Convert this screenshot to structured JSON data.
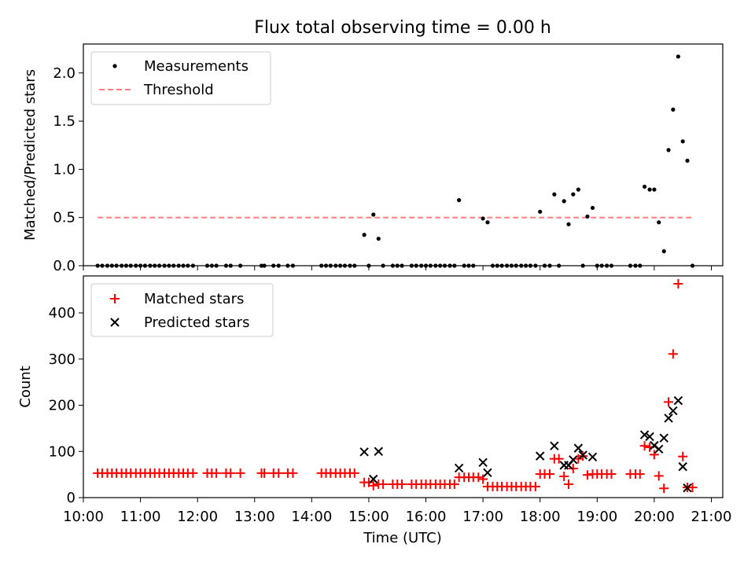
{
  "chart_data": [
    {
      "type": "scatter",
      "title": "Flux total observing time = 0.00 h",
      "xlabel": "",
      "ylabel": "Matched/Predicted stars",
      "xlim": [
        10.0,
        21.2
      ],
      "ylim": [
        0,
        2.3
      ],
      "yticks": [
        0,
        0.5,
        1,
        1.5,
        2
      ],
      "ytick_labels": [
        "0.0",
        "0.5",
        "1.0",
        "1.5",
        "2.0"
      ],
      "legend_position": "upper-left",
      "legend": [
        {
          "label": "Measurements",
          "marker": "dot",
          "color": "#000000"
        },
        {
          "label": "Threshold",
          "marker": "dashed-line",
          "color": "#ff7f7f"
        }
      ],
      "threshold": {
        "value": 0.5,
        "x_start": 10.25,
        "x_end": 20.67,
        "color": "#ff7f7f"
      },
      "points": [
        [
          10.25,
          0
        ],
        [
          10.33,
          0
        ],
        [
          10.42,
          0
        ],
        [
          10.5,
          0
        ],
        [
          10.58,
          0
        ],
        [
          10.67,
          0
        ],
        [
          10.75,
          0
        ],
        [
          10.83,
          0
        ],
        [
          10.92,
          0
        ],
        [
          11.0,
          0
        ],
        [
          11.08,
          0
        ],
        [
          11.17,
          0
        ],
        [
          11.25,
          0
        ],
        [
          11.33,
          0
        ],
        [
          11.42,
          0
        ],
        [
          11.5,
          0
        ],
        [
          11.58,
          0
        ],
        [
          11.67,
          0
        ],
        [
          11.75,
          0
        ],
        [
          11.83,
          0
        ],
        [
          11.92,
          0
        ],
        [
          12.17,
          0
        ],
        [
          12.25,
          0
        ],
        [
          12.33,
          0
        ],
        [
          12.5,
          0
        ],
        [
          12.58,
          0
        ],
        [
          12.75,
          0
        ],
        [
          13.12,
          0
        ],
        [
          13.17,
          0
        ],
        [
          13.33,
          0
        ],
        [
          13.42,
          0
        ],
        [
          13.58,
          0
        ],
        [
          13.67,
          0
        ],
        [
          14.17,
          0
        ],
        [
          14.25,
          0
        ],
        [
          14.33,
          0
        ],
        [
          14.42,
          0
        ],
        [
          14.5,
          0
        ],
        [
          14.58,
          0
        ],
        [
          14.67,
          0
        ],
        [
          14.75,
          0
        ],
        [
          14.92,
          0.32
        ],
        [
          15.0,
          0
        ],
        [
          15.08,
          0.53
        ],
        [
          15.17,
          0.28
        ],
        [
          15.25,
          0
        ],
        [
          15.42,
          0
        ],
        [
          15.5,
          0
        ],
        [
          15.58,
          0
        ],
        [
          15.75,
          0
        ],
        [
          15.83,
          0
        ],
        [
          15.92,
          0
        ],
        [
          16.0,
          0
        ],
        [
          16.08,
          0
        ],
        [
          16.17,
          0
        ],
        [
          16.25,
          0
        ],
        [
          16.33,
          0
        ],
        [
          16.42,
          0
        ],
        [
          16.5,
          0
        ],
        [
          16.58,
          0.68
        ],
        [
          16.67,
          0
        ],
        [
          16.75,
          0
        ],
        [
          16.83,
          0
        ],
        [
          17.0,
          0.49
        ],
        [
          17.08,
          0.45
        ],
        [
          17.17,
          0
        ],
        [
          17.25,
          0
        ],
        [
          17.33,
          0
        ],
        [
          17.42,
          0
        ],
        [
          17.5,
          0
        ],
        [
          17.58,
          0
        ],
        [
          17.67,
          0
        ],
        [
          17.75,
          0
        ],
        [
          17.83,
          0
        ],
        [
          17.92,
          0
        ],
        [
          18.0,
          0.56
        ],
        [
          18.08,
          0
        ],
        [
          18.17,
          0
        ],
        [
          18.25,
          0.74
        ],
        [
          18.33,
          0
        ],
        [
          18.42,
          0.67
        ],
        [
          18.5,
          0.43
        ],
        [
          18.58,
          0.74
        ],
        [
          18.67,
          0.79
        ],
        [
          18.75,
          0
        ],
        [
          18.83,
          0.51
        ],
        [
          18.92,
          0.6
        ],
        [
          19.0,
          0
        ],
        [
          19.08,
          0
        ],
        [
          19.17,
          0
        ],
        [
          19.25,
          0
        ],
        [
          19.58,
          0
        ],
        [
          19.67,
          0
        ],
        [
          19.75,
          0
        ],
        [
          19.83,
          0.82
        ],
        [
          19.92,
          0.79
        ],
        [
          20.0,
          0.79
        ],
        [
          20.08,
          0.45
        ],
        [
          20.17,
          0.15
        ],
        [
          20.25,
          1.2
        ],
        [
          20.33,
          1.62
        ],
        [
          20.42,
          2.17
        ],
        [
          20.5,
          1.29
        ],
        [
          20.58,
          1.09
        ],
        [
          20.67,
          0
        ]
      ]
    },
    {
      "type": "scatter",
      "title": "",
      "xlabel": "Time (UTC)",
      "ylabel": "Count",
      "xlim": [
        10.0,
        21.2
      ],
      "ylim": [
        0,
        480
      ],
      "yticks": [
        0,
        100,
        200,
        300,
        400
      ],
      "ytick_labels": [
        "0",
        "100",
        "200",
        "300",
        "400"
      ],
      "xticks": [
        10,
        11,
        12,
        13,
        14,
        15,
        16,
        17,
        18,
        19,
        20,
        21
      ],
      "xtick_labels": [
        "10:00",
        "11:00",
        "12:00",
        "13:00",
        "14:00",
        "15:00",
        "16:00",
        "17:00",
        "18:00",
        "19:00",
        "20:00",
        "21:00"
      ],
      "legend_position": "upper-left",
      "legend": [
        {
          "label": "Matched stars",
          "marker": "plus",
          "color": "#ff0000"
        },
        {
          "label": "Predicted stars",
          "marker": "x",
          "color": "#000000"
        }
      ],
      "series": [
        {
          "name": "Matched stars",
          "marker": "plus",
          "color": "#ff0000",
          "points": [
            [
              10.25,
              53
            ],
            [
              10.33,
              53
            ],
            [
              10.42,
              53
            ],
            [
              10.5,
              53
            ],
            [
              10.58,
              53
            ],
            [
              10.67,
              53
            ],
            [
              10.75,
              53
            ],
            [
              10.83,
              53
            ],
            [
              10.92,
              53
            ],
            [
              11.0,
              53
            ],
            [
              11.08,
              53
            ],
            [
              11.17,
              53
            ],
            [
              11.25,
              53
            ],
            [
              11.33,
              53
            ],
            [
              11.42,
              53
            ],
            [
              11.5,
              53
            ],
            [
              11.58,
              53
            ],
            [
              11.67,
              53
            ],
            [
              11.75,
              53
            ],
            [
              11.83,
              53
            ],
            [
              11.92,
              53
            ],
            [
              12.17,
              53
            ],
            [
              12.25,
              53
            ],
            [
              12.33,
              53
            ],
            [
              12.5,
              53
            ],
            [
              12.58,
              53
            ],
            [
              12.75,
              53
            ],
            [
              13.12,
              53
            ],
            [
              13.17,
              53
            ],
            [
              13.33,
              53
            ],
            [
              13.42,
              53
            ],
            [
              13.58,
              53
            ],
            [
              13.67,
              53
            ],
            [
              14.17,
              53
            ],
            [
              14.25,
              53
            ],
            [
              14.33,
              53
            ],
            [
              14.42,
              53
            ],
            [
              14.5,
              53
            ],
            [
              14.58,
              53
            ],
            [
              14.67,
              53
            ],
            [
              14.75,
              53
            ],
            [
              14.92,
              33
            ],
            [
              15.0,
              33
            ],
            [
              15.08,
              26
            ],
            [
              15.17,
              29
            ],
            [
              15.25,
              29
            ],
            [
              15.42,
              29
            ],
            [
              15.5,
              29
            ],
            [
              15.58,
              29
            ],
            [
              15.75,
              29
            ],
            [
              15.83,
              29
            ],
            [
              15.92,
              29
            ],
            [
              16.0,
              29
            ],
            [
              16.08,
              29
            ],
            [
              16.17,
              29
            ],
            [
              16.25,
              29
            ],
            [
              16.33,
              29
            ],
            [
              16.42,
              29
            ],
            [
              16.5,
              29
            ],
            [
              16.58,
              44
            ],
            [
              16.67,
              44
            ],
            [
              16.75,
              44
            ],
            [
              16.83,
              44
            ],
            [
              16.92,
              44
            ],
            [
              17.0,
              40
            ],
            [
              17.08,
              24
            ],
            [
              17.17,
              24
            ],
            [
              17.25,
              24
            ],
            [
              17.33,
              24
            ],
            [
              17.42,
              24
            ],
            [
              17.5,
              24
            ],
            [
              17.58,
              24
            ],
            [
              17.67,
              24
            ],
            [
              17.75,
              24
            ],
            [
              17.83,
              24
            ],
            [
              17.92,
              24
            ],
            [
              18.0,
              51
            ],
            [
              18.08,
              51
            ],
            [
              18.17,
              51
            ],
            [
              18.25,
              84
            ],
            [
              18.33,
              84
            ],
            [
              18.42,
              46
            ],
            [
              18.5,
              29
            ],
            [
              18.58,
              63
            ],
            [
              18.67,
              84
            ],
            [
              18.75,
              90
            ],
            [
              18.83,
              49
            ],
            [
              18.92,
              51
            ],
            [
              19.0,
              51
            ],
            [
              19.08,
              51
            ],
            [
              19.17,
              51
            ],
            [
              19.25,
              51
            ],
            [
              19.58,
              51
            ],
            [
              19.67,
              51
            ],
            [
              19.75,
              51
            ],
            [
              19.83,
              112
            ],
            [
              19.92,
              109
            ],
            [
              20.0,
              93
            ],
            [
              20.08,
              47
            ],
            [
              20.17,
              20
            ],
            [
              20.25,
              207
            ],
            [
              20.33,
              311
            ],
            [
              20.42,
              463
            ],
            [
              20.5,
              89
            ],
            [
              20.58,
              22
            ],
            [
              20.67,
              22
            ]
          ]
        },
        {
          "name": "Predicted stars",
          "marker": "x",
          "color": "#000000",
          "points": [
            [
              14.92,
              99
            ],
            [
              15.08,
              40
            ],
            [
              15.17,
              100
            ],
            [
              16.58,
              64
            ],
            [
              17.0,
              76
            ],
            [
              17.08,
              54
            ],
            [
              18.0,
              90
            ],
            [
              18.25,
              112
            ],
            [
              18.42,
              70
            ],
            [
              18.5,
              70
            ],
            [
              18.58,
              82
            ],
            [
              18.67,
              107
            ],
            [
              18.75,
              92
            ],
            [
              18.92,
              88
            ],
            [
              19.83,
              136
            ],
            [
              19.92,
              132
            ],
            [
              20.0,
              113
            ],
            [
              20.08,
              105
            ],
            [
              20.17,
              129
            ],
            [
              20.25,
              172
            ],
            [
              20.33,
              188
            ],
            [
              20.42,
              210
            ],
            [
              20.5,
              67
            ],
            [
              20.58,
              21
            ]
          ]
        }
      ]
    }
  ]
}
